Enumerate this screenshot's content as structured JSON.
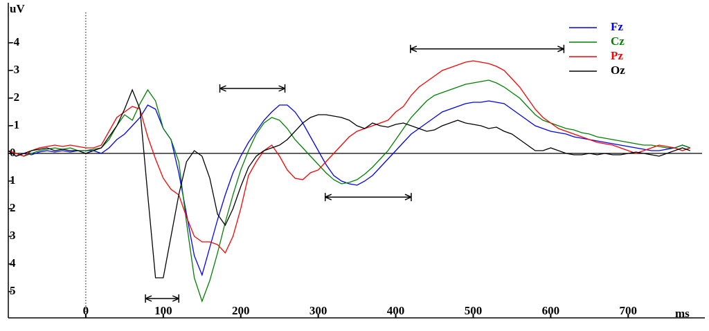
{
  "chart_data": {
    "type": "line",
    "y_axis_label": "uV",
    "x_axis_label": "ms",
    "xlim": [
      -100,
      790
    ],
    "ylim": [
      -5.2,
      5.95
    ],
    "y_inverted": true,
    "xticks": [
      0,
      100,
      200,
      300,
      400,
      500,
      600,
      700
    ],
    "yticks": [
      -4,
      -3,
      -2,
      -1,
      0,
      1,
      2,
      3,
      4,
      5
    ],
    "legend": "top-right",
    "x": [
      -100,
      -90,
      -80,
      -70,
      -60,
      -50,
      -40,
      -30,
      -20,
      -10,
      0,
      10,
      20,
      30,
      40,
      50,
      60,
      70,
      80,
      90,
      100,
      110,
      120,
      130,
      140,
      150,
      160,
      170,
      180,
      190,
      200,
      210,
      220,
      230,
      240,
      250,
      260,
      270,
      280,
      290,
      300,
      310,
      320,
      330,
      340,
      350,
      360,
      370,
      380,
      390,
      400,
      410,
      420,
      430,
      440,
      450,
      460,
      470,
      480,
      490,
      500,
      510,
      520,
      530,
      540,
      550,
      560,
      570,
      580,
      590,
      600,
      610,
      620,
      630,
      640,
      650,
      660,
      670,
      680,
      690,
      700,
      710,
      720,
      730,
      740,
      750,
      760,
      770,
      780
    ],
    "series": [
      {
        "name": "Fz",
        "color": "#0000ff",
        "values": [
          -0.1,
          0.1,
          0,
          0.05,
          -0.05,
          -0.1,
          -0.05,
          -0.1,
          -0.05,
          -0.1,
          -0.1,
          -0.1,
          0,
          -0.2,
          -0.5,
          -0.7,
          -1.0,
          -1.3,
          -1.75,
          -1.6,
          -0.9,
          -0.5,
          0.7,
          2.2,
          3.7,
          4.4,
          3.4,
          2.4,
          1.5,
          0.7,
          0.1,
          -0.4,
          -0.8,
          -1.2,
          -1.5,
          -1.75,
          -1.75,
          -1.5,
          -1.1,
          -0.6,
          -0.1,
          0.4,
          0.8,
          1.0,
          1.1,
          1.15,
          1.0,
          0.8,
          0.5,
          0.2,
          -0.1,
          -0.4,
          -0.7,
          -0.9,
          -1.1,
          -1.3,
          -1.5,
          -1.6,
          -1.7,
          -1.8,
          -1.85,
          -1.85,
          -1.9,
          -1.85,
          -1.8,
          -1.6,
          -1.4,
          -1.2,
          -1.0,
          -0.9,
          -0.8,
          -0.75,
          -0.7,
          -0.6,
          -0.55,
          -0.5,
          -0.45,
          -0.4,
          -0.35,
          -0.3,
          -0.25,
          -0.2,
          -0.15,
          -0.1,
          -0.1,
          -0.15,
          -0.2,
          -0.3,
          -0.2
        ]
      },
      {
        "name": "Cz",
        "color": "#008000",
        "values": [
          -0.1,
          0,
          0.1,
          0,
          -0.1,
          -0.15,
          -0.2,
          -0.15,
          -0.2,
          -0.1,
          -0.1,
          -0.15,
          -0.2,
          -0.5,
          -1.0,
          -1.4,
          -1.2,
          -1.8,
          -2.3,
          -1.9,
          -0.9,
          -0.5,
          0.3,
          2.5,
          4.5,
          5.35,
          4.6,
          3.6,
          2.5,
          1.5,
          0.6,
          -0.1,
          -0.7,
          -1.1,
          -1.3,
          -1.2,
          -0.9,
          -0.5,
          -0.2,
          0.1,
          0.4,
          0.7,
          0.95,
          1.1,
          1.05,
          0.95,
          0.75,
          0.5,
          0.2,
          -0.1,
          -0.5,
          -0.9,
          -1.3,
          -1.6,
          -1.9,
          -2.1,
          -2.2,
          -2.3,
          -2.4,
          -2.5,
          -2.55,
          -2.6,
          -2.65,
          -2.55,
          -2.4,
          -2.2,
          -2.0,
          -1.7,
          -1.4,
          -1.2,
          -1.1,
          -1.0,
          -0.9,
          -0.85,
          -0.75,
          -0.7,
          -0.6,
          -0.55,
          -0.5,
          -0.45,
          -0.4,
          -0.35,
          -0.3,
          -0.3,
          -0.25,
          -0.2,
          -0.2,
          -0.3,
          -0.2
        ]
      },
      {
        "name": "Pz",
        "color": "#ff0000",
        "values": [
          -0.1,
          0,
          0.1,
          -0.1,
          -0.2,
          -0.25,
          -0.3,
          -0.25,
          -0.3,
          -0.25,
          -0.2,
          -0.2,
          -0.3,
          -0.8,
          -1.3,
          -1.5,
          -1.7,
          -1.6,
          -0.6,
          0.2,
          0.9,
          1.3,
          1.5,
          2.3,
          3.0,
          3.2,
          3.2,
          3.3,
          3.6,
          3.0,
          2.0,
          0.8,
          0.3,
          -0.1,
          -0.3,
          0.1,
          0.6,
          0.9,
          0.95,
          0.7,
          0.6,
          0.3,
          0,
          -0.3,
          -0.6,
          -0.8,
          -0.9,
          -1.0,
          -1.1,
          -1.2,
          -1.5,
          -1.7,
          -2.1,
          -2.4,
          -2.6,
          -2.8,
          -3.0,
          -3.1,
          -3.2,
          -3.3,
          -3.35,
          -3.3,
          -3.25,
          -3.15,
          -3.0,
          -2.7,
          -2.4,
          -2.0,
          -1.6,
          -1.3,
          -1.1,
          -0.9,
          -0.8,
          -0.7,
          -0.6,
          -0.5,
          -0.4,
          -0.35,
          -0.3,
          -0.2,
          -0.1,
          0,
          -0.1,
          -0.2,
          -0.3,
          -0.25,
          -0.2,
          -0.1,
          -0.2
        ]
      },
      {
        "name": "Oz",
        "color": "#000000",
        "values": [
          -0.1,
          0.1,
          0,
          -0.1,
          -0.15,
          -0.2,
          -0.1,
          -0.15,
          -0.1,
          -0.1,
          0,
          -0.1,
          -0.2,
          -0.6,
          -1.0,
          -1.6,
          -2.3,
          -1.6,
          1.5,
          4.5,
          4.5,
          3.0,
          1.5,
          0.3,
          -0.1,
          0.1,
          0.9,
          2.2,
          2.6,
          2.0,
          1.2,
          0.5,
          0.1,
          -0.1,
          -0.2,
          -0.3,
          -0.5,
          -0.8,
          -1.1,
          -1.3,
          -1.4,
          -1.4,
          -1.35,
          -1.3,
          -1.2,
          -1.0,
          -0.9,
          -1.1,
          -1.0,
          -0.95,
          -1.05,
          -1.1,
          -1.0,
          -0.9,
          -0.8,
          -0.85,
          -1.0,
          -1.1,
          -1.2,
          -1.1,
          -1.05,
          -1.0,
          -0.9,
          -0.95,
          -0.8,
          -0.7,
          -0.5,
          -0.3,
          -0.1,
          -0.1,
          -0.2,
          -0.1,
          0,
          0.05,
          0.05,
          0,
          0.05,
          0,
          0.05,
          0.05,
          0,
          -0.05,
          0,
          0.05,
          0.1,
          0,
          -0.1,
          -0.2,
          -0.1
        ]
      }
    ],
    "windows": [
      {
        "x": [
          77,
          120
        ],
        "y": 5.25
      },
      {
        "x": [
          173,
          257
        ],
        "y": -2.35
      },
      {
        "x": [
          309,
          420
        ],
        "y": 1.58
      },
      {
        "x": [
          419,
          617
        ],
        "y": -3.78
      }
    ]
  }
}
